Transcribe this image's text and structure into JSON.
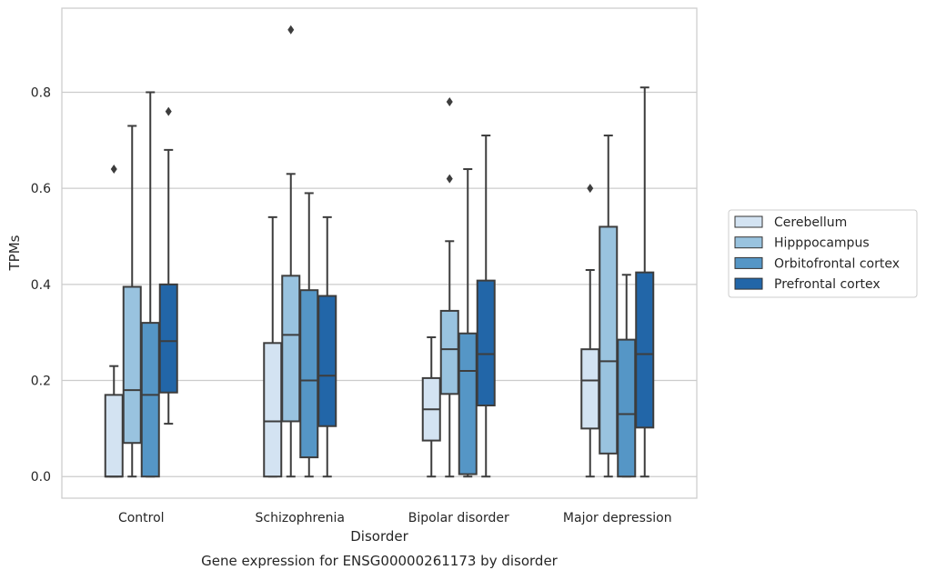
{
  "chart_data": {
    "type": "box",
    "title": "",
    "caption": "Gene expression for ENSG00000261173 by disorder",
    "xlabel": "Disorder",
    "ylabel": "TPMs",
    "ylim": [
      -0.045,
      0.975
    ],
    "yticks": [
      0.0,
      0.2,
      0.4,
      0.6,
      0.8
    ],
    "ytick_labels": [
      "0.0",
      "0.2",
      "0.4",
      "0.6",
      "0.8"
    ],
    "grid": "horizontal",
    "legend_position": "right",
    "categories": [
      "Control",
      "Schizophrenia",
      "Bipolar disorder",
      "Major depression"
    ],
    "series": [
      {
        "name": "Cerebellum",
        "color": "#d3e3f2",
        "boxes": [
          {
            "whislo": 0.0,
            "q1": 0.0,
            "med": 0.0,
            "q3": 0.17,
            "whishi": 0.23,
            "fliers": [
              0.64
            ]
          },
          {
            "whislo": 0.0,
            "q1": 0.0,
            "med": 0.115,
            "q3": 0.278,
            "whishi": 0.54,
            "fliers": []
          },
          {
            "whislo": 0.0,
            "q1": 0.075,
            "med": 0.14,
            "q3": 0.205,
            "whishi": 0.29,
            "fliers": []
          },
          {
            "whislo": 0.0,
            "q1": 0.1,
            "med": 0.2,
            "q3": 0.265,
            "whishi": 0.43,
            "fliers": [
              0.6
            ]
          }
        ]
      },
      {
        "name": "Hipppocampus",
        "color": "#99c3df",
        "boxes": [
          {
            "whislo": 0.0,
            "q1": 0.07,
            "med": 0.18,
            "q3": 0.395,
            "whishi": 0.73,
            "fliers": []
          },
          {
            "whislo": 0.0,
            "q1": 0.115,
            "med": 0.295,
            "q3": 0.418,
            "whishi": 0.63,
            "fliers": [
              0.93
            ]
          },
          {
            "whislo": 0.0,
            "q1": 0.172,
            "med": 0.265,
            "q3": 0.345,
            "whishi": 0.49,
            "fliers": [
              0.62,
              0.78
            ]
          },
          {
            "whislo": 0.0,
            "q1": 0.048,
            "med": 0.24,
            "q3": 0.52,
            "whishi": 0.71,
            "fliers": []
          }
        ]
      },
      {
        "name": "Orbitofrontal cortex",
        "color": "#5596c6",
        "boxes": [
          {
            "whislo": 0.0,
            "q1": 0.0,
            "med": 0.17,
            "q3": 0.32,
            "whishi": 0.8,
            "fliers": []
          },
          {
            "whislo": 0.0,
            "q1": 0.04,
            "med": 0.2,
            "q3": 0.388,
            "whishi": 0.59,
            "fliers": []
          },
          {
            "whislo": 0.0,
            "q1": 0.005,
            "med": 0.22,
            "q3": 0.298,
            "whishi": 0.64,
            "fliers": []
          },
          {
            "whislo": 0.0,
            "q1": 0.0,
            "med": 0.13,
            "q3": 0.285,
            "whishi": 0.42,
            "fliers": []
          }
        ]
      },
      {
        "name": "Prefrontal cortex",
        "color": "#2266a8",
        "boxes": [
          {
            "whislo": 0.11,
            "q1": 0.175,
            "med": 0.282,
            "q3": 0.4,
            "whishi": 0.68,
            "fliers": [
              0.76
            ]
          },
          {
            "whislo": 0.0,
            "q1": 0.105,
            "med": 0.21,
            "q3": 0.376,
            "whishi": 0.54,
            "fliers": []
          },
          {
            "whislo": 0.0,
            "q1": 0.148,
            "med": 0.255,
            "q3": 0.408,
            "whishi": 0.71,
            "fliers": []
          },
          {
            "whislo": 0.0,
            "q1": 0.102,
            "med": 0.255,
            "q3": 0.425,
            "whishi": 0.81,
            "fliers": []
          }
        ]
      }
    ]
  }
}
